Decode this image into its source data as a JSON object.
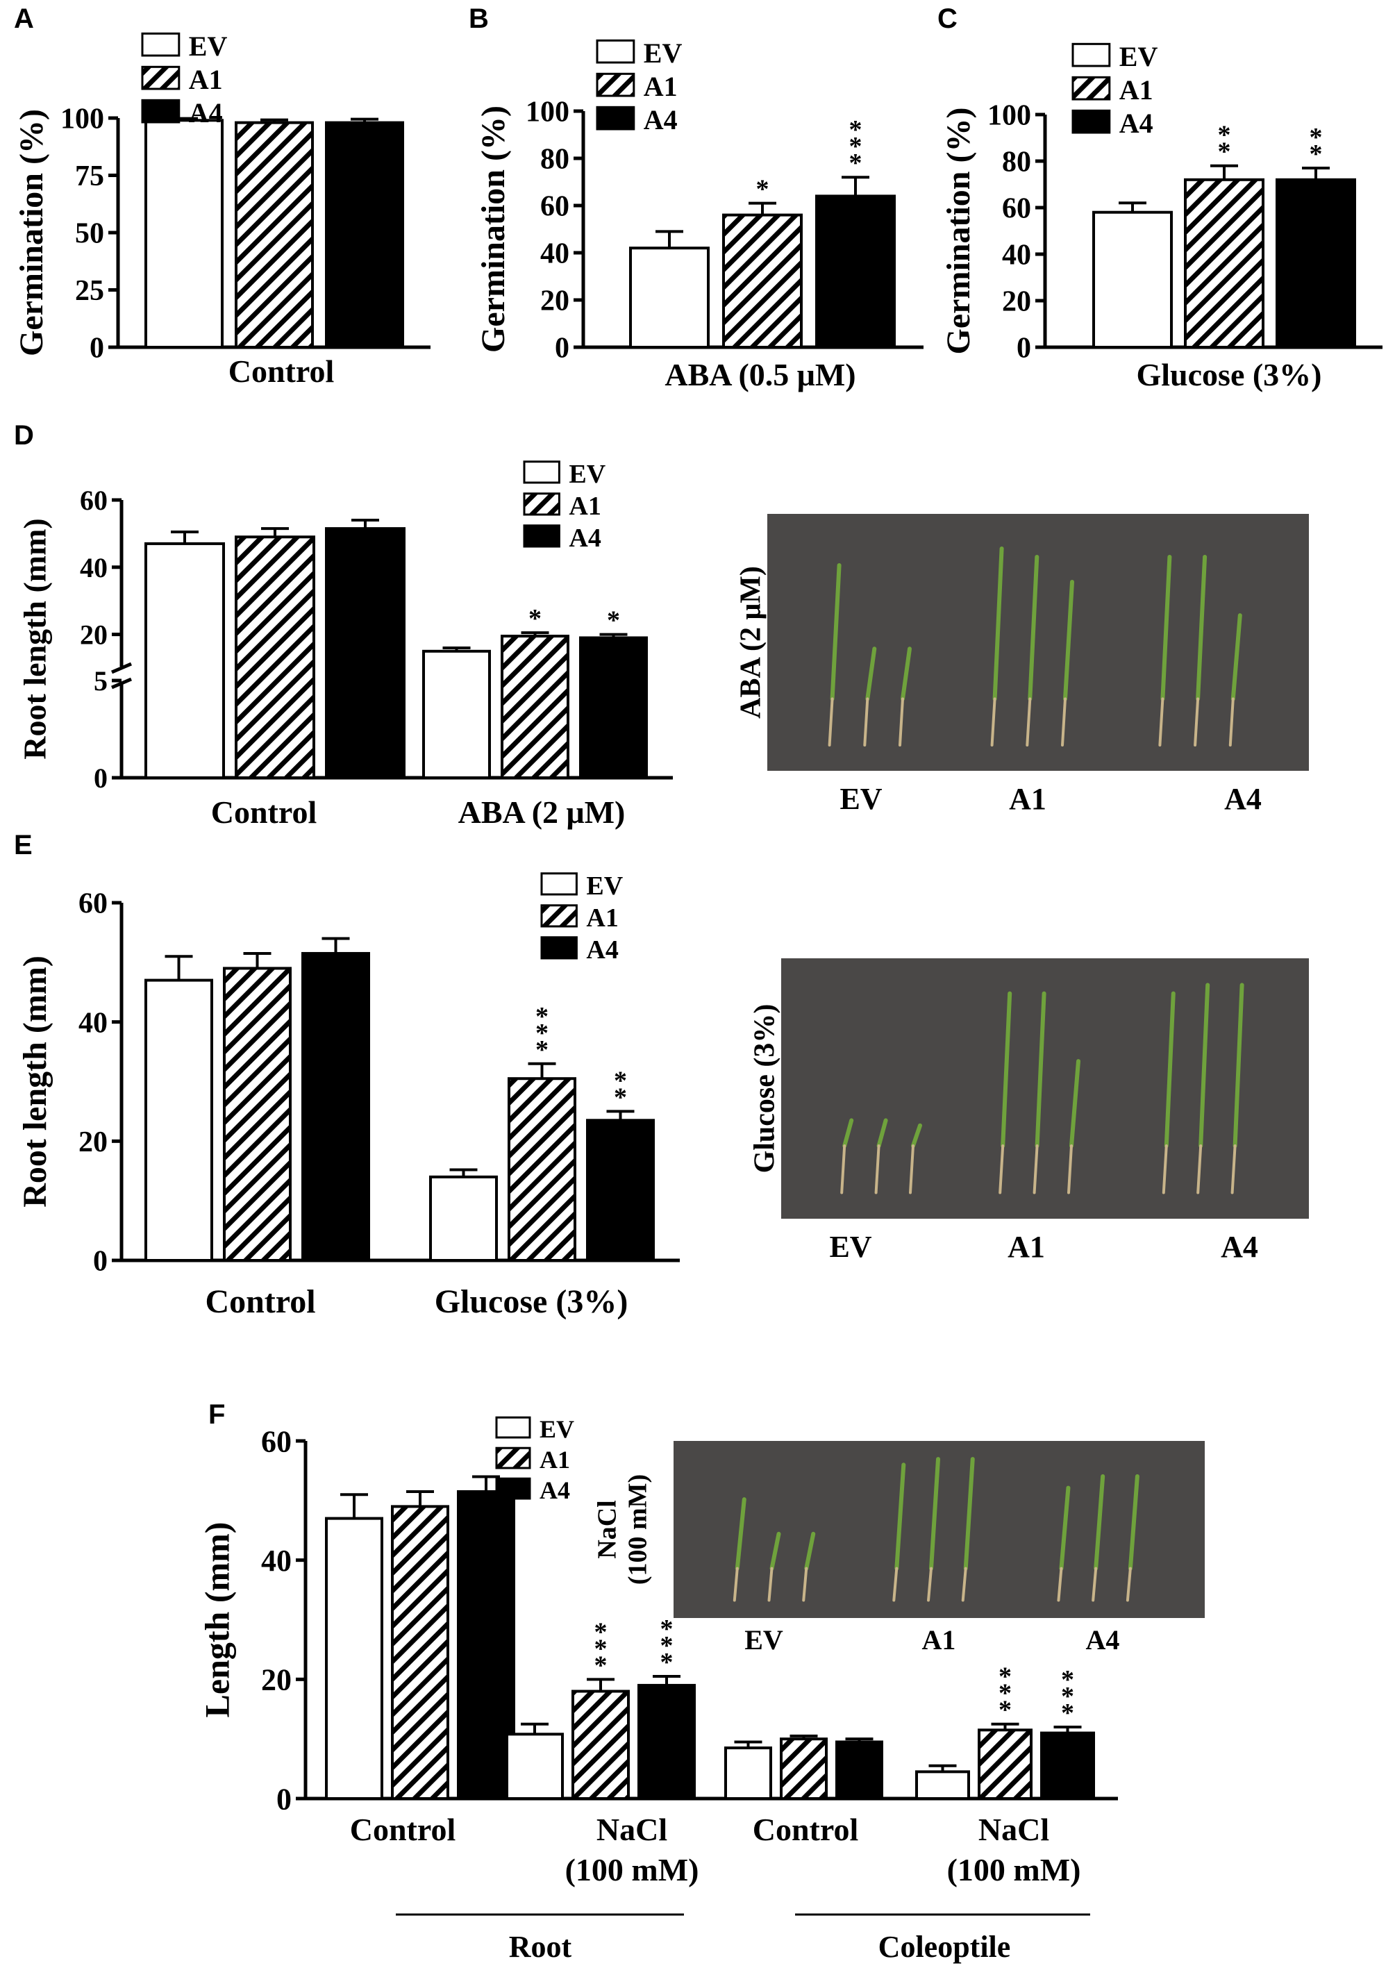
{
  "colors": {
    "ink": "#000000",
    "bar_fill_ev": "#ffffff",
    "bar_fill_a4": "#000000",
    "photo_bg": "#4a4847",
    "leaf_green": "#6fa23c",
    "root_tan": "#c8b48a"
  },
  "legend_labels": [
    "EV",
    "A1",
    "A4"
  ],
  "chart_data": [
    {
      "id": "A",
      "letter": "A",
      "type": "bar",
      "ylabel": "Germination (%)",
      "ylim": [
        0,
        100
      ],
      "yticks": [
        "0",
        "25",
        "50",
        "75",
        "100"
      ],
      "groups": [
        {
          "label": "Control",
          "values": [
            99,
            98,
            98
          ],
          "errors": [
            0.8,
            1.2,
            1.5
          ],
          "sig": [
            "",
            "",
            ""
          ]
        }
      ]
    },
    {
      "id": "B",
      "letter": "B",
      "type": "bar",
      "ylabel": "Germination (%)",
      "ylim": [
        0,
        100
      ],
      "yticks": [
        "0",
        "20",
        "40",
        "60",
        "80",
        "100"
      ],
      "groups": [
        {
          "label": "ABA (0.5 μM)",
          "values": [
            42,
            56,
            64
          ],
          "errors": [
            7,
            5,
            8
          ],
          "sig": [
            "",
            "*",
            "***"
          ]
        }
      ]
    },
    {
      "id": "C",
      "letter": "C",
      "type": "bar",
      "ylabel": "Germination (%)",
      "ylim": [
        0,
        100
      ],
      "yticks": [
        "0",
        "20",
        "40",
        "60",
        "80",
        "100"
      ],
      "groups": [
        {
          "label": "Glucose (3%)",
          "values": [
            58,
            72,
            72
          ],
          "errors": [
            4,
            6,
            5
          ],
          "sig": [
            "",
            "**",
            "**"
          ]
        }
      ]
    },
    {
      "id": "D",
      "letter": "D",
      "type": "bar",
      "ylabel": "Root length (mm)",
      "ylim": [
        0,
        60
      ],
      "axis_break": true,
      "yticks": [
        "0",
        "5",
        "20",
        "40",
        "60"
      ],
      "groups": [
        {
          "label": "Control",
          "values": [
            47,
            49,
            51.5
          ],
          "errors": [
            3.5,
            2.5,
            2.5
          ],
          "sig": [
            "",
            "",
            ""
          ]
        },
        {
          "label": "ABA (2 μM)",
          "values": [
            15,
            19.5,
            19
          ],
          "errors": [
            1,
            1,
            1
          ],
          "sig": [
            "",
            "*",
            "*"
          ]
        }
      ],
      "photo": {
        "side_label": "ABA (2 μM)",
        "bottom_labels": [
          "EV",
          "A1",
          "A4"
        ]
      }
    },
    {
      "id": "E",
      "letter": "E",
      "type": "bar",
      "ylabel": "Root length (mm)",
      "ylim": [
        0,
        60
      ],
      "yticks": [
        "0",
        "20",
        "40",
        "60"
      ],
      "groups": [
        {
          "label": "Control",
          "values": [
            47,
            49,
            51.5
          ],
          "errors": [
            4,
            2.5,
            2.5
          ],
          "sig": [
            "",
            "",
            ""
          ]
        },
        {
          "label": "Glucose (3%)",
          "values": [
            14,
            30.5,
            23.5
          ],
          "errors": [
            1.2,
            2.5,
            1.5
          ],
          "sig": [
            "",
            "***",
            "**"
          ]
        }
      ],
      "photo": {
        "side_label": "Glucose (3%)",
        "bottom_labels": [
          "EV",
          "A1",
          "A4"
        ]
      }
    },
    {
      "id": "F",
      "letter": "F",
      "type": "bar",
      "ylabel": "Length (mm)",
      "ylim": [
        0,
        60
      ],
      "yticks": [
        "0",
        "20",
        "40",
        "60"
      ],
      "groups": [
        {
          "label": "Control",
          "values": [
            47,
            49,
            51.5
          ],
          "errors": [
            4,
            2.5,
            2.5
          ],
          "sig": [
            "",
            "",
            ""
          ]
        },
        {
          "label": "NaCl\n(100 mM)",
          "values": [
            10.8,
            18,
            19
          ],
          "errors": [
            1.7,
            2,
            1.5
          ],
          "sig": [
            "",
            "***",
            "***"
          ]
        },
        {
          "label": "Control",
          "values": [
            8.5,
            10,
            9.5
          ],
          "errors": [
            1,
            0.5,
            0.5
          ],
          "sig": [
            "",
            "",
            ""
          ]
        },
        {
          "label": "NaCl\n(100 mM)",
          "values": [
            4.5,
            11.5,
            11
          ],
          "errors": [
            1,
            1,
            1
          ],
          "sig": [
            "",
            "***",
            "***"
          ]
        }
      ],
      "brackets": [
        "Root",
        "Coleoptile"
      ],
      "photo": {
        "side_label": "NaCl\n(100 mM)",
        "bottom_labels": [
          "EV",
          "A1",
          "A4"
        ]
      }
    }
  ]
}
